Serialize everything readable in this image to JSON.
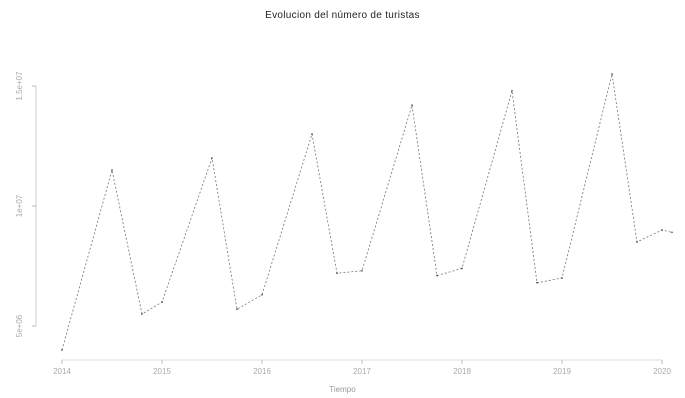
{
  "chart_data": {
    "type": "line",
    "title": "Evolucion del número de turistas",
    "xlabel": "Tiempo",
    "ylabel": "",
    "x_ticks": [
      2014,
      2015,
      2016,
      2017,
      2018,
      2019,
      2020
    ],
    "x_tick_labels": [
      "2014",
      "2015",
      "2016",
      "2017",
      "2018",
      "2019",
      "2020"
    ],
    "y_ticks": [
      5000000,
      10000000,
      15000000
    ],
    "y_tick_labels": [
      "5e+06",
      "1e+07",
      "1.5e+07"
    ],
    "xlim": [
      2014.0,
      2020.1
    ],
    "ylim": [
      4000000,
      16500000
    ],
    "color": "#000000",
    "series": [
      {
        "x": [
          2014.0,
          2014.5,
          2014.8,
          2015.0,
          2015.5,
          2015.75,
          2016.0,
          2016.5,
          2016.75,
          2017.0,
          2017.5,
          2017.75,
          2018.0,
          2018.5,
          2018.75,
          2019.0,
          2019.5,
          2019.75,
          2020.0,
          2020.1
        ],
        "y": [
          4000000,
          11500000,
          5500000,
          6000000,
          12000000,
          5700000,
          6300000,
          13000000,
          7200000,
          7300000,
          14200000,
          7100000,
          7400000,
          14800000,
          6800000,
          7000000,
          15500000,
          8500000,
          9000000,
          8900000
        ]
      }
    ]
  }
}
